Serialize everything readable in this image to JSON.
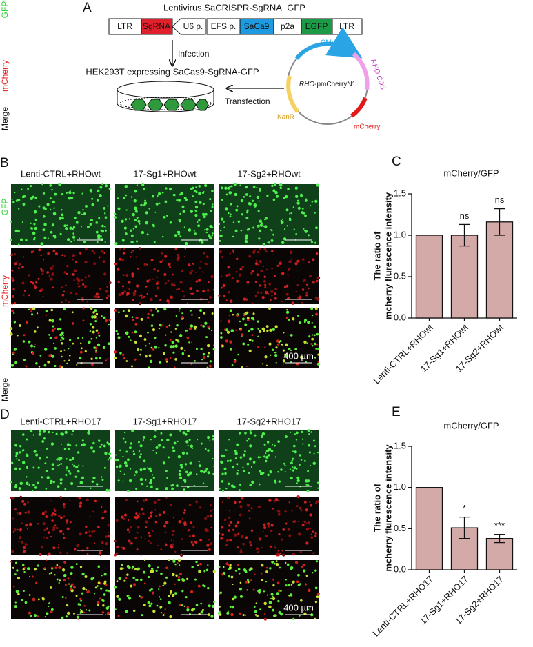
{
  "panel_labels": {
    "a": "A",
    "b": "B",
    "c": "C",
    "d": "D",
    "e": "E"
  },
  "side_labels": {
    "top": [
      "GFP",
      "mCherry",
      "Merge"
    ],
    "b": [
      "GFP",
      "mCherry",
      "Merge"
    ]
  },
  "schematic": {
    "construct_title": "Lentivirus SaCRISPR-SgRNA_GFP",
    "elements": [
      "LTR",
      "SgRNA",
      "U6 p.",
      "EFS p.",
      "SaCa9",
      "p2a",
      "EGFP",
      "LTR"
    ],
    "infection": "Infection",
    "cell_line": "HEK293T expressing SaCas9-SgRNA-GFP",
    "transfection": "Transfection",
    "plasmid": {
      "name_italic": "RHO",
      "name_rest": "-pmCherryN1",
      "features": [
        "CMV",
        "RHO CDS",
        "KanR",
        "mCherry"
      ]
    }
  },
  "micrographs": {
    "b": {
      "columns": [
        "Lenti-CTRL+RHOwt",
        "17-Sg1+RHOwt",
        "17-Sg2+RHOwt"
      ],
      "scale": "400 µm"
    },
    "d": {
      "columns": [
        "Lenti-CTRL+RHO17",
        "17-Sg1+RHO17",
        "17-Sg2+RHO17"
      ],
      "scale": "400 µm"
    }
  },
  "chart_data": [
    {
      "type": "bar",
      "title": "mCherry/GFP",
      "y_label": [
        "The ratio of",
        "mcherry flurescence intensity"
      ],
      "categories": [
        "Lenti-CTRL+RHOwt",
        "17-Sg1+RHOwt",
        "17-Sg2+RHOwt"
      ],
      "values": [
        1.0,
        1.0,
        1.16
      ],
      "errors": [
        0,
        0.13,
        0.16
      ],
      "annotations": [
        null,
        "ns",
        "ns"
      ],
      "color": "#d4aaa9",
      "ylim": [
        0,
        1.5
      ],
      "yticks": [
        {
          "value": 0,
          "label": "0.0"
        },
        0.5,
        {
          "value": 1,
          "label": "1.0"
        },
        1.5
      ]
    },
    {
      "type": "bar",
      "title": "mCherry/GFP",
      "y_label": [
        "The ratio of",
        "mcherry flurescence intensity"
      ],
      "categories": [
        "Lenti-CTRL+RHO17",
        "17-Sg1+RHO17",
        "17-Sg2+RHO17"
      ],
      "values": [
        1.0,
        0.51,
        0.38
      ],
      "errors": [
        0,
        0.13,
        0.05
      ],
      "annotations": [
        null,
        "*",
        "***"
      ],
      "color": "#d4aaa9",
      "ylim": [
        0,
        1.5
      ],
      "yticks": [
        {
          "value": 0,
          "label": "0.0"
        },
        0.5,
        {
          "value": 1,
          "label": "1.0"
        },
        1.5
      ]
    }
  ]
}
